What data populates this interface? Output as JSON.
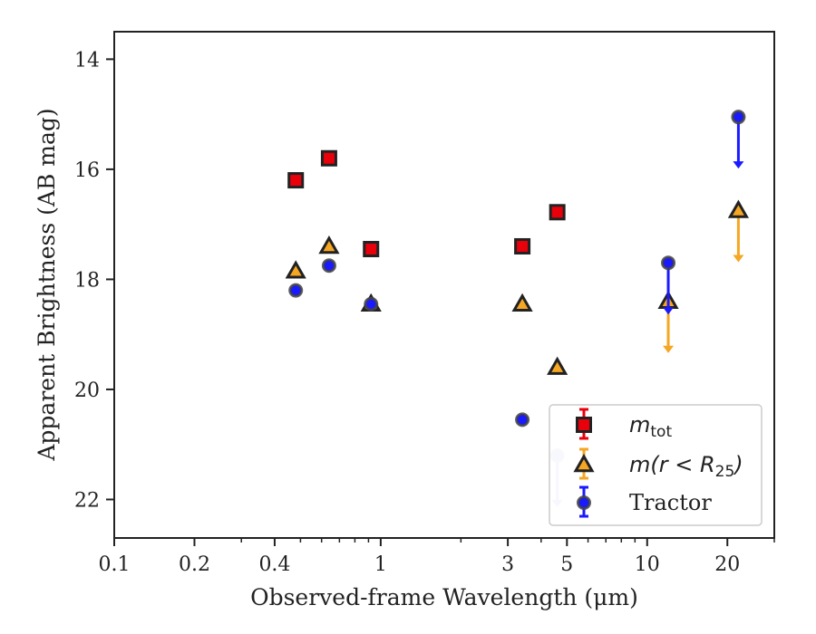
{
  "chart_data": {
    "type": "scatter",
    "xlabel": "Observed-frame Wavelength (μm)",
    "ylabel": "Apparent Brightness (AB mag)",
    "xscale": "log",
    "xlim": [
      0.1,
      30
    ],
    "ylim": [
      22.7,
      13.5
    ],
    "y_inverted": true,
    "grid": false,
    "legend_position": "lower-right",
    "x_ticks": [
      {
        "value": 0.1,
        "label": "0.1"
      },
      {
        "value": 0.2,
        "label": "0.2"
      },
      {
        "value": 0.4,
        "label": "0.4"
      },
      {
        "value": 1,
        "label": "1"
      },
      {
        "value": 3,
        "label": "3"
      },
      {
        "value": 5,
        "label": "5"
      },
      {
        "value": 10,
        "label": "10"
      },
      {
        "value": 20,
        "label": "20"
      }
    ],
    "y_ticks": [
      {
        "value": 14,
        "label": "14"
      },
      {
        "value": 16,
        "label": "16"
      },
      {
        "value": 18,
        "label": "18"
      },
      {
        "value": 20,
        "label": "20"
      },
      {
        "value": 22,
        "label": "22"
      }
    ],
    "series": [
      {
        "name": "m_tot",
        "marker": "square",
        "color": "#e8000b",
        "points": [
          {
            "x": 0.48,
            "y": 16.2
          },
          {
            "x": 0.64,
            "y": 15.8
          },
          {
            "x": 0.92,
            "y": 17.45
          },
          {
            "x": 3.4,
            "y": 17.4
          },
          {
            "x": 4.6,
            "y": 16.78
          }
        ]
      },
      {
        "name": "m(r<R25)",
        "marker": "triangle",
        "color": "#f5a623",
        "points": [
          {
            "x": 0.48,
            "y": 17.85
          },
          {
            "x": 0.64,
            "y": 17.4
          },
          {
            "x": 0.92,
            "y": 18.45
          },
          {
            "x": 3.4,
            "y": 18.45
          },
          {
            "x": 4.6,
            "y": 19.6
          },
          {
            "x": 12.0,
            "y": 18.4,
            "upper_limit": true
          },
          {
            "x": 22.0,
            "y": 16.75,
            "upper_limit": true
          }
        ]
      },
      {
        "name": "Tractor",
        "marker": "circle",
        "color": "#1a1aff",
        "points": [
          {
            "x": 0.48,
            "y": 18.2
          },
          {
            "x": 0.64,
            "y": 17.75
          },
          {
            "x": 0.92,
            "y": 18.45
          },
          {
            "x": 3.4,
            "y": 20.55
          },
          {
            "x": 4.6,
            "y": 21.2,
            "upper_limit": true
          },
          {
            "x": 12.0,
            "y": 17.7,
            "upper_limit": true
          },
          {
            "x": 22.0,
            "y": 15.05,
            "upper_limit": true
          }
        ]
      }
    ],
    "legend": [
      {
        "main": "m",
        "sub": "tot"
      },
      {
        "main": "m(r < R",
        "sub": "25",
        "tail": ")"
      },
      {
        "main": "Tractor"
      }
    ]
  }
}
